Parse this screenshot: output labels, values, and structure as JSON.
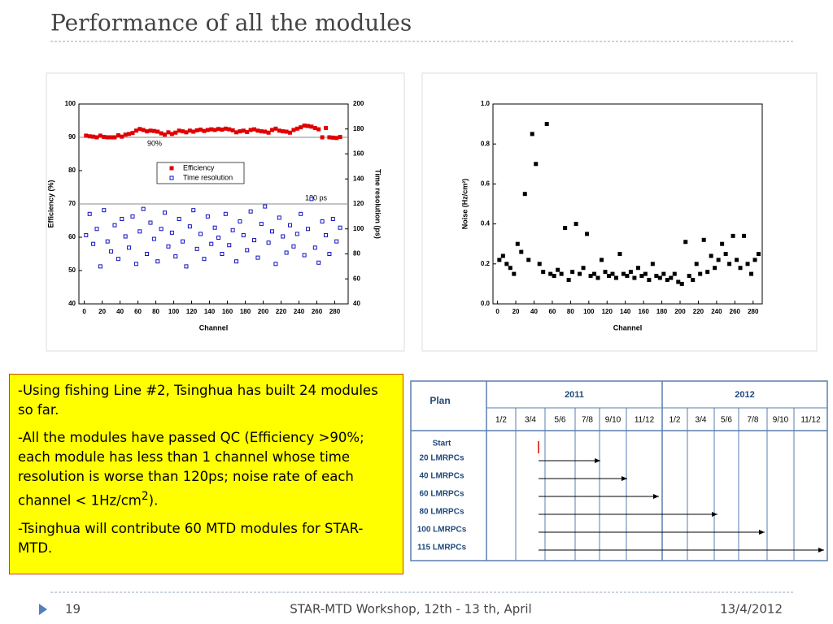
{
  "title": "Performance of all the modules",
  "chart_data": [
    {
      "type": "scatter",
      "x_label": "Channel",
      "y_label": "Efficiency (%)",
      "y2_label": "Time resolution (ps)",
      "xlim": [
        -6,
        295
      ],
      "xticks": [
        0,
        20,
        40,
        60,
        80,
        100,
        120,
        140,
        160,
        180,
        200,
        220,
        240,
        260,
        280
      ],
      "ylim": [
        40,
        100
      ],
      "yticks": [
        40,
        50,
        60,
        70,
        80,
        90,
        100
      ],
      "y2lim": [
        40,
        200
      ],
      "y2ticks": [
        40,
        60,
        80,
        100,
        120,
        140,
        160,
        180,
        200
      ],
      "legend": "upper center",
      "reference_lines": [
        {
          "value": 90,
          "label": "90%"
        },
        {
          "value": 120,
          "label": "120 ps",
          "axis": "y2"
        }
      ],
      "x": [
        2,
        6,
        10,
        14,
        18,
        22,
        26,
        30,
        34,
        38,
        42,
        46,
        50,
        54,
        58,
        62,
        66,
        70,
        74,
        78,
        82,
        86,
        90,
        94,
        98,
        102,
        106,
        110,
        114,
        118,
        122,
        126,
        130,
        134,
        138,
        142,
        146,
        150,
        154,
        158,
        162,
        166,
        170,
        174,
        178,
        182,
        186,
        190,
        194,
        198,
        202,
        206,
        210,
        214,
        218,
        222,
        226,
        230,
        234,
        238,
        242,
        246,
        250,
        254,
        258,
        262,
        266,
        270,
        274,
        278,
        282,
        286
      ],
      "series": [
        {
          "name": "Efficiency",
          "color": "#e00000",
          "marker": "filled-square",
          "values": [
            90.5,
            90.3,
            90.2,
            90,
            90.5,
            90.1,
            90,
            90,
            90,
            90.6,
            90.2,
            90.8,
            91,
            91.3,
            92,
            92.5,
            92.2,
            91.8,
            92,
            91.9,
            91.7,
            91.2,
            90.8,
            91.5,
            91,
            91.4,
            92,
            91.8,
            91.5,
            92,
            91.7,
            92.1,
            92.3,
            91.9,
            92.2,
            92.4,
            92.2,
            92.5,
            92.3,
            92.6,
            92.4,
            92.1,
            91.5,
            91.8,
            92,
            91.6,
            92.2,
            92.4,
            92,
            91.8,
            91.7,
            91.4,
            92.2,
            92.6,
            92,
            91.8,
            91.7,
            91.4,
            92.2,
            92.6,
            93,
            93.5,
            93.4,
            93.2,
            92.8,
            92.4,
            90,
            92.8,
            90,
            89.9,
            89.8,
            90.1
          ]
        },
        {
          "name": "Time resolution",
          "color": "#1010c0",
          "marker": "open-square",
          "axis": "y2",
          "values": [
            95,
            112,
            88,
            100,
            70,
            115,
            90,
            82,
            103,
            76,
            108,
            94,
            85,
            110,
            72,
            98,
            116,
            80,
            105,
            92,
            74,
            100,
            113,
            86,
            97,
            78,
            108,
            90,
            70,
            102,
            115,
            84,
            96,
            76,
            110,
            88,
            101,
            93,
            80,
            112,
            87,
            99,
            74,
            106,
            95,
            83,
            114,
            91,
            77,
            104,
            118,
            89,
            98,
            72,
            109,
            94,
            81,
            103,
            86,
            96,
            112,
            79,
            100,
            124,
            85,
            73,
            106,
            95,
            80,
            108,
            90,
            101
          ]
        }
      ]
    },
    {
      "type": "scatter",
      "x_label": "Channel",
      "y_label": "Noise (Hz/cm²)",
      "xlim": [
        -5,
        290
      ],
      "xticks": [
        0,
        20,
        40,
        60,
        80,
        100,
        120,
        140,
        160,
        180,
        200,
        220,
        240,
        260,
        280
      ],
      "ylim": [
        0,
        1
      ],
      "yticks": [
        {
          "value": 0,
          "label": "0.0"
        },
        0.2,
        0.4,
        0.6,
        0.8,
        {
          "value": 1,
          "label": "1.0"
        }
      ],
      "x": [
        2,
        6,
        10,
        14,
        18,
        22,
        26,
        30,
        34,
        38,
        42,
        46,
        50,
        54,
        58,
        62,
        66,
        70,
        74,
        78,
        82,
        86,
        90,
        94,
        98,
        102,
        106,
        110,
        114,
        118,
        122,
        126,
        130,
        134,
        138,
        142,
        146,
        150,
        154,
        158,
        162,
        166,
        170,
        174,
        178,
        182,
        186,
        190,
        194,
        198,
        202,
        206,
        210,
        214,
        218,
        222,
        226,
        230,
        234,
        238,
        242,
        246,
        250,
        254,
        258,
        262,
        266,
        270,
        274,
        278,
        282,
        286
      ],
      "series": [
        {
          "color": "#000000",
          "marker": "filled-square",
          "values": [
            0.22,
            0.24,
            0.2,
            0.18,
            0.15,
            0.3,
            0.26,
            0.55,
            0.22,
            0.85,
            0.7,
            0.2,
            0.16,
            0.9,
            0.15,
            0.14,
            0.17,
            0.15,
            0.38,
            0.12,
            0.16,
            0.4,
            0.15,
            0.18,
            0.35,
            0.14,
            0.15,
            0.13,
            0.22,
            0.16,
            0.14,
            0.15,
            0.13,
            0.25,
            0.15,
            0.14,
            0.16,
            0.13,
            0.18,
            0.14,
            0.15,
            0.12,
            0.2,
            0.14,
            0.13,
            0.15,
            0.12,
            0.13,
            0.15,
            0.11,
            0.1,
            0.31,
            0.14,
            0.12,
            0.2,
            0.15,
            0.32,
            0.16,
            0.24,
            0.18,
            0.22,
            0.3,
            0.25,
            0.2,
            0.34,
            0.22,
            0.18,
            0.34,
            0.2,
            0.15,
            0.22,
            0.25
          ]
        }
      ]
    }
  ],
  "notes": [
    {
      "text": "-Using fishing Line #2, Tsinghua has built 24 modules so far."
    },
    {
      "text": "-All the modules have passed QC (Efficiency >90%; each module has less than 1 channel whose time resolution is worse than 120ps; noise rate of each channel < 1Hz/cm",
      "sup": "2",
      "tail": ")."
    },
    {
      "text": "-Tsinghua will contribute 60 MTD modules for STAR-MTD."
    }
  ],
  "table": {
    "plan": "Plan",
    "years": [
      "2011",
      "2012"
    ],
    "months": [
      [
        "1/2",
        "3/4",
        "5/6",
        "7/8",
        "9/10",
        "11/12"
      ],
      [
        "1/2",
        "3/4",
        "5/6",
        "7/8",
        "9/10",
        "11/12"
      ]
    ],
    "start": "Start",
    "rows": [
      "20 LMRPCs",
      "40 LMRPCs",
      "60 LMRPCs",
      "80 LMRPCs",
      "100 LMRPCs",
      "115 LMRPCs"
    ]
  },
  "footer": {
    "page": "19",
    "event": "STAR-MTD Workshop, 12th - 13 th, April",
    "date": "13/4/2012"
  }
}
